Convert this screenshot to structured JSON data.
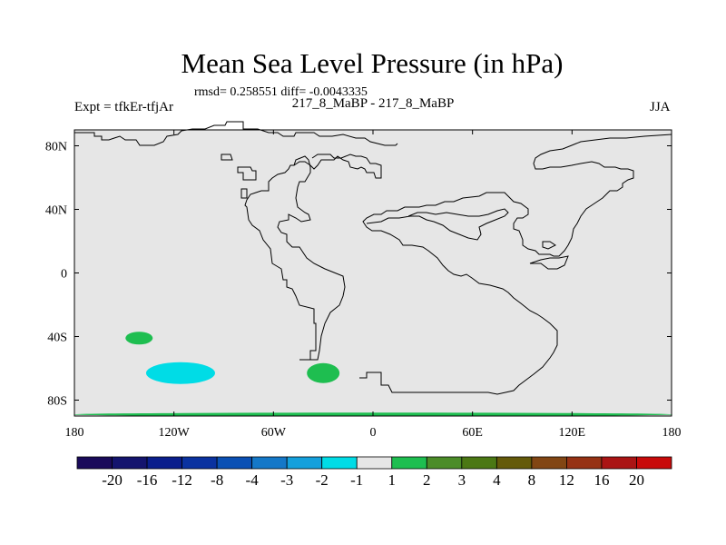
{
  "chart_data": {
    "type": "heatmap",
    "title": "Mean Sea Level Pressure (in hPa)",
    "stats_text": "rmsd= 0.258551 diff= -0.0043335",
    "left_label": "Expt = tfkEr-tfjAr",
    "center_label": "217_8_MaBP - 217_8_MaBP",
    "right_label": "JJA",
    "x_ticks": [
      "180",
      "120W",
      "60W",
      "0",
      "60E",
      "120E",
      "180"
    ],
    "y_ticks": [
      "80N",
      "40N",
      "0",
      "40S",
      "80S"
    ],
    "xlim": [
      -180,
      180
    ],
    "ylim": [
      -90,
      90
    ],
    "background_value_color": "#e6e6e6",
    "colorbar": {
      "levels": [
        "-20",
        "-16",
        "-12",
        "-8",
        "-4",
        "-3",
        "-2",
        "-1",
        "1",
        "2",
        "3",
        "4",
        "8",
        "12",
        "16",
        "20"
      ],
      "colors": [
        "#1a0a5a",
        "#14146e",
        "#0a1e8c",
        "#0a32a0",
        "#0a50b4",
        "#1478c8",
        "#14a0dc",
        "#00dce6",
        "#e6e6e6",
        "#1ebe50",
        "#4b8c28",
        "#4b7814",
        "#645a0a",
        "#824614",
        "#963214",
        "#aa1414",
        "#c80a0a"
      ]
    },
    "anomalies": [
      {
        "lon": -141,
        "lat": -41,
        "color": "#1ebe50"
      },
      {
        "lon": -116,
        "lat": -63,
        "color": "#00dce6"
      },
      {
        "lon": -30,
        "lat": -63,
        "color": "#1ebe50"
      },
      {
        "lon": 0,
        "lat": -89,
        "color": "#1ebe50"
      }
    ]
  }
}
